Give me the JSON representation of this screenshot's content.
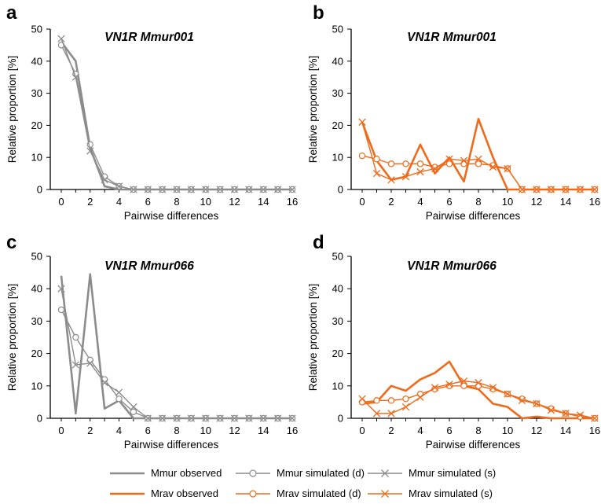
{
  "colors": {
    "mmur": "#8c8c8c",
    "mrav": "#ef6a1a",
    "axis": "#000000"
  },
  "legend": [
    {
      "label": "Mmur observed",
      "species": "mmur",
      "kind": "observed"
    },
    {
      "label": "Mmur simulated (d)",
      "species": "mmur",
      "kind": "sim_d"
    },
    {
      "label": "Mmur simulated (s)",
      "species": "mmur",
      "kind": "sim_s"
    },
    {
      "label": "Mrav observed",
      "species": "mrav",
      "kind": "observed"
    },
    {
      "label": "Mrav simulated (d)",
      "species": "mrav",
      "kind": "sim_d"
    },
    {
      "label": "Mrav simulated (s)",
      "species": "mrav",
      "kind": "sim_s"
    }
  ],
  "chart_data": [
    {
      "type": "line",
      "panel": "a",
      "title": "VN1R Mmur001",
      "species": "mmur",
      "xlabel": "Pairwise differences",
      "ylabel": "Relative proportion [%]",
      "ylim": [
        0,
        50
      ],
      "xlim": [
        0,
        16
      ],
      "yticks": [
        0,
        10,
        20,
        30,
        40,
        50
      ],
      "xticks": [
        0,
        2,
        4,
        6,
        8,
        10,
        12,
        14,
        16
      ],
      "x": [
        0,
        1,
        2,
        3,
        4,
        5,
        6,
        7,
        8,
        9,
        10,
        11,
        12,
        13,
        14,
        15,
        16
      ],
      "series": [
        {
          "kind": "observed",
          "values": [
            46,
            40,
            13,
            1,
            0,
            0,
            0,
            0,
            0,
            0,
            0,
            0,
            0,
            0,
            0,
            0,
            0
          ]
        },
        {
          "kind": "sim_d",
          "values": [
            45,
            36,
            14,
            4,
            1,
            0,
            0,
            0,
            0,
            0,
            0,
            0,
            0,
            0,
            0,
            0,
            0
          ]
        },
        {
          "kind": "sim_s",
          "values": [
            47,
            35,
            12,
            3,
            1,
            0,
            0,
            0,
            0,
            0,
            0,
            0,
            0,
            0,
            0,
            0,
            0
          ]
        }
      ]
    },
    {
      "type": "line",
      "panel": "b",
      "title": "VN1R Mmur001",
      "species": "mrav",
      "xlabel": "Pairwise differences",
      "ylabel": "Relative proportion [%]",
      "ylim": [
        0,
        50
      ],
      "xlim": [
        0,
        16
      ],
      "yticks": [
        0,
        10,
        20,
        30,
        40,
        50
      ],
      "xticks": [
        0,
        2,
        4,
        6,
        8,
        10,
        12,
        14,
        16
      ],
      "x": [
        0,
        1,
        2,
        3,
        4,
        5,
        6,
        7,
        8,
        9,
        10,
        11,
        12,
        13,
        14,
        15,
        16
      ],
      "series": [
        {
          "kind": "observed",
          "values": [
            21,
            9,
            3,
            4,
            14,
            5,
            10,
            2.5,
            22,
            10,
            0,
            0,
            0,
            0,
            0,
            0,
            0
          ]
        },
        {
          "kind": "sim_d",
          "values": [
            10.5,
            9.5,
            8,
            8,
            8,
            7,
            8,
            8,
            8,
            7.5,
            6.5,
            0,
            0,
            0,
            0,
            0,
            0
          ]
        },
        {
          "kind": "sim_s",
          "values": [
            21,
            5,
            3,
            4,
            5.5,
            6.5,
            9.5,
            9,
            9.5,
            7,
            6.5,
            0,
            0,
            0,
            0,
            0,
            0
          ]
        }
      ]
    },
    {
      "type": "line",
      "panel": "c",
      "title": "VN1R Mmur066",
      "species": "mmur",
      "xlabel": "Pairwise differences",
      "ylabel": "Relative proportion [%]",
      "ylim": [
        0,
        50
      ],
      "xlim": [
        0,
        16
      ],
      "yticks": [
        0,
        10,
        20,
        30,
        40,
        50
      ],
      "xticks": [
        0,
        2,
        4,
        6,
        8,
        10,
        12,
        14,
        16
      ],
      "x": [
        0,
        1,
        2,
        3,
        4,
        5,
        6,
        7,
        8,
        9,
        10,
        11,
        12,
        13,
        14,
        15,
        16
      ],
      "series": [
        {
          "kind": "observed",
          "values": [
            44,
            1.5,
            44.5,
            3,
            5.5,
            0,
            0,
            0,
            0,
            0,
            0,
            0,
            0,
            0,
            0,
            0,
            0
          ]
        },
        {
          "kind": "sim_d",
          "values": [
            33.5,
            25,
            18,
            12,
            6,
            2,
            0,
            0,
            0,
            0,
            0,
            0,
            0,
            0,
            0,
            0,
            0
          ]
        },
        {
          "kind": "sim_s",
          "values": [
            40,
            16.5,
            17,
            11,
            8,
            3.5,
            0,
            0,
            0,
            0,
            0,
            0,
            0,
            0,
            0,
            0,
            0
          ]
        }
      ]
    },
    {
      "type": "line",
      "panel": "d",
      "title": "VN1R Mmur066",
      "species": "mrav",
      "xlabel": "Pairwise differences",
      "ylabel": "Relative proportion [%]",
      "ylim": [
        0,
        50
      ],
      "xlim": [
        0,
        16
      ],
      "yticks": [
        0,
        10,
        20,
        30,
        40,
        50
      ],
      "xticks": [
        0,
        2,
        4,
        6,
        8,
        10,
        12,
        14,
        16
      ],
      "x": [
        0,
        1,
        2,
        3,
        4,
        5,
        6,
        7,
        8,
        9,
        10,
        11,
        12,
        13,
        14,
        15,
        16
      ],
      "series": [
        {
          "kind": "observed",
          "values": [
            4.5,
            5,
            10,
            8.5,
            12,
            14,
            17.5,
            10,
            9,
            4.5,
            3.5,
            0,
            0.5,
            0,
            0,
            0,
            0
          ]
        },
        {
          "kind": "sim_d",
          "values": [
            5,
            5.5,
            5.5,
            6,
            7.5,
            9,
            10,
            10,
            10,
            9,
            7.5,
            6,
            4.5,
            3,
            1.5,
            0.5,
            0
          ]
        },
        {
          "kind": "sim_s",
          "values": [
            6,
            1.5,
            1.5,
            3.5,
            6.5,
            9.5,
            10.5,
            11.5,
            11,
            9.5,
            7.5,
            5.5,
            4.5,
            2.5,
            1.5,
            1,
            0
          ]
        }
      ]
    }
  ]
}
